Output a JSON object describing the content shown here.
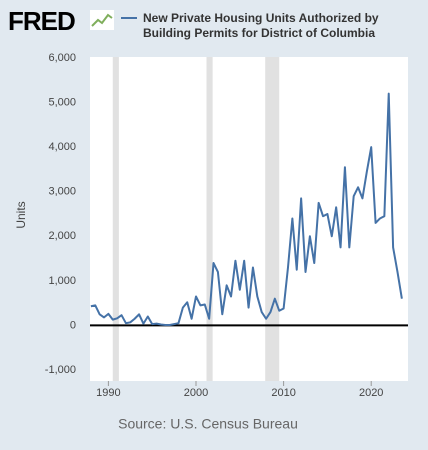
{
  "header": {
    "logo": "FRED"
  },
  "chart_data": {
    "type": "line",
    "y_label": "Units",
    "source": "Source: U.S. Census Bureau",
    "x": [
      1988,
      1988.5,
      1989,
      1989.5,
      1990,
      1990.5,
      1991,
      1991.5,
      1992,
      1992.5,
      1993,
      1993.5,
      1994,
      1994.5,
      1995,
      1995.5,
      1996,
      1996.5,
      1997,
      1997.5,
      1998,
      1998.5,
      1999,
      1999.5,
      2000,
      2000.5,
      2001,
      2001.5,
      2002,
      2002.5,
      2003,
      2003.5,
      2004,
      2004.5,
      2005,
      2005.5,
      2006,
      2006.5,
      2007,
      2007.5,
      2008,
      2008.5,
      2009,
      2009.5,
      2010,
      2010.5,
      2011,
      2011.5,
      2012,
      2012.5,
      2013,
      2013.5,
      2014,
      2014.5,
      2015,
      2015.5,
      2016,
      2016.5,
      2017,
      2017.5,
      2018,
      2018.5,
      2019,
      2019.5,
      2020,
      2020.5,
      2021,
      2021.5,
      2022,
      2022.5,
      2023,
      2023.5
    ],
    "series": [
      {
        "name": "New Private Housing Units Authorized by Building Permits for District of Columbia",
        "color": "#4572a7",
        "values": [
          430,
          450,
          250,
          180,
          260,
          130,
          160,
          230,
          50,
          70,
          150,
          250,
          40,
          200,
          30,
          40,
          20,
          10,
          10,
          30,
          50,
          400,
          520,
          150,
          650,
          450,
          470,
          150,
          1400,
          1200,
          250,
          900,
          650,
          1450,
          800,
          1450,
          400,
          1300,
          650,
          300,
          150,
          300,
          600,
          330,
          380,
          1300,
          2400,
          1250,
          2850,
          1200,
          2000,
          1400,
          2750,
          2450,
          2500,
          2000,
          2650,
          1750,
          3550,
          1750,
          2900,
          3100,
          2850,
          3450,
          4000,
          2300,
          2400,
          2450,
          5200,
          1750,
          1200,
          600
        ]
      }
    ],
    "recessions": [
      [
        1990.5,
        1991.2
      ],
      [
        2001.2,
        2001.9
      ],
      [
        2007.9,
        2009.5
      ]
    ],
    "recession_color": "#e1e1e1",
    "xlim": [
      1987.9,
      2024.2
    ],
    "xticks": [
      1990,
      2000,
      2010,
      2020
    ],
    "ylim": [
      -1000,
      6000
    ],
    "yticks": [
      {
        "value": -1000,
        "label": "-1,000"
      },
      0,
      {
        "value": 1000,
        "label": "1,000"
      },
      {
        "value": 2000,
        "label": "2,000"
      },
      {
        "value": 3000,
        "label": "3,000"
      },
      {
        "value": 4000,
        "label": "4,000"
      },
      {
        "value": 5000,
        "label": "5,000"
      },
      {
        "value": 6000,
        "label": "6,000"
      }
    ]
  }
}
